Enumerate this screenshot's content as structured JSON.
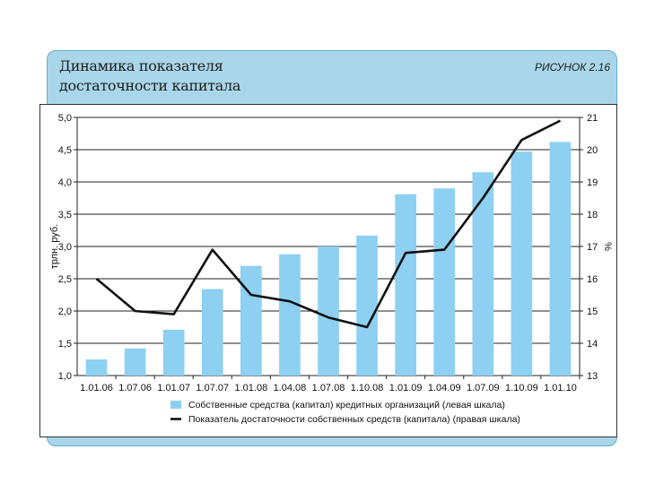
{
  "header": {
    "title": "Динамика показателя\nдостаточности капитала",
    "figure_label": "РИСУНОК 2.16"
  },
  "chart_data": {
    "type": "bar",
    "categories": [
      "1.01.06",
      "1.07.06",
      "1.01.07",
      "1.07.07",
      "1.01.08",
      "1.04.08",
      "1.07.08",
      "1.10.08",
      "1.01.09",
      "1.04.09",
      "1.07.09",
      "1.10.09",
      "1.01.10"
    ],
    "series": [
      {
        "name": "Собственные средства (капитал) кредитных организаций (левая шкала)",
        "type": "bar",
        "axis": "left",
        "color": "#8dd0f2",
        "values": [
          1.25,
          1.42,
          1.71,
          2.34,
          2.7,
          2.88,
          3.0,
          3.17,
          3.81,
          3.9,
          4.15,
          4.47,
          4.62
        ]
      },
      {
        "name": "Показатель достаточности собственных средств (капитала) (правая шкала)",
        "type": "line",
        "axis": "right",
        "color": "#111111",
        "values": [
          16.0,
          15.0,
          14.9,
          16.9,
          15.5,
          15.3,
          14.8,
          14.5,
          16.8,
          16.9,
          18.5,
          20.3,
          20.9
        ]
      }
    ],
    "ylabel": "трлн. руб.",
    "y2label": "%",
    "ylim": [
      1.0,
      5.0
    ],
    "yticks": [
      "1,0",
      "1,5",
      "2,0",
      "2,5",
      "3,0",
      "3,5",
      "4,0",
      "4,5",
      "5,0"
    ],
    "y2lim": [
      13,
      21
    ],
    "y2ticks": [
      "13",
      "14",
      "15",
      "16",
      "17",
      "18",
      "19",
      "20",
      "21"
    ],
    "grid": true,
    "legend_position": "bottom"
  }
}
